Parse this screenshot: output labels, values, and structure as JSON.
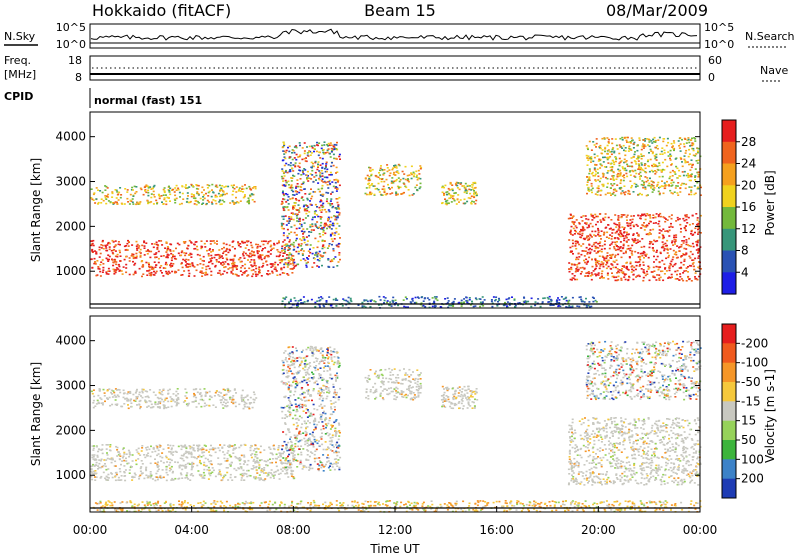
{
  "header": {
    "left_title": "Hokkaido (fitACF)",
    "center_title": "Beam 15",
    "right_title": "08/Mar/2009"
  },
  "summary_panels": {
    "nsky": {
      "label": "N.Sky",
      "right_label": "N.Search",
      "left_ticks": [
        "10^5",
        "10^0"
      ],
      "right_ticks": [
        "10^5",
        "10^0"
      ]
    },
    "freq": {
      "label_line1": "Freq.",
      "label_line2": "[MHz]",
      "left_ticks": [
        "18",
        "8"
      ],
      "right_ticks": [
        "60",
        "0"
      ],
      "right_label": "Nave"
    },
    "cpid": {
      "label": "CPID",
      "value": "normal (fast) 151"
    }
  },
  "chart_data": [
    {
      "type": "heatmap",
      "panel": "power",
      "ylabel": "Slant Range [km]",
      "yticks": [
        1000,
        2000,
        3000,
        4000
      ],
      "ylim": [
        180,
        4550
      ],
      "xlim_hours": [
        0,
        24
      ],
      "colorbar_label": "Power [dB]",
      "colorbar_ticks": [
        4,
        8,
        12,
        16,
        20,
        24,
        28
      ],
      "colorbar_colors": [
        "#1e1ee6",
        "#2a52b4",
        "#37967a",
        "#73b93c",
        "#f0d21e",
        "#f5a01e",
        "#f0641e",
        "#e61e1e"
      ],
      "scatter_regions": [
        {
          "t": [
            0.0,
            8.0
          ],
          "r": [
            900,
            1700
          ],
          "level": "high"
        },
        {
          "t": [
            0.0,
            6.5
          ],
          "r": [
            2500,
            2950
          ],
          "level": "mid"
        },
        {
          "t": [
            7.5,
            9.8
          ],
          "r": [
            1100,
            3900
          ],
          "level": "mixed"
        },
        {
          "t": [
            10.8,
            13.0
          ],
          "r": [
            2700,
            3400
          ],
          "level": "mid"
        },
        {
          "t": [
            13.8,
            15.2
          ],
          "r": [
            2500,
            3000
          ],
          "level": "mid"
        },
        {
          "t": [
            18.8,
            24.0
          ],
          "r": [
            800,
            2300
          ],
          "level": "high"
        },
        {
          "t": [
            19.5,
            24.0
          ],
          "r": [
            2700,
            4000
          ],
          "level": "mid"
        },
        {
          "t": [
            7.5,
            20.0
          ],
          "r": [
            200,
            450
          ],
          "level": "low"
        }
      ]
    },
    {
      "type": "heatmap",
      "panel": "velocity",
      "ylabel": "Slant Range [km]",
      "yticks": [
        1000,
        2000,
        3000,
        4000
      ],
      "ylim": [
        180,
        4550
      ],
      "xlim_hours": [
        0,
        24
      ],
      "xlabel": "Time UT",
      "xticks": [
        "00:00",
        "04:00",
        "08:00",
        "12:00",
        "16:00",
        "20:00",
        "00:00"
      ],
      "colorbar_label": "Velocity [m s-1]",
      "colorbar_ticks": [
        "200",
        "100",
        "50",
        "15",
        "-15",
        "-50",
        "-100",
        "-200"
      ],
      "colorbar_colors": [
        "#1e3cb4",
        "#3c82c8",
        "#3cb43c",
        "#96d25a",
        "#c8c8c0",
        "#f5c83c",
        "#f59628",
        "#f05a1e",
        "#e61e1e"
      ],
      "scatter_regions": [
        {
          "t": [
            0.0,
            8.0
          ],
          "r": [
            900,
            1700
          ],
          "level": "near-zero"
        },
        {
          "t": [
            0.0,
            6.5
          ],
          "r": [
            2500,
            2950
          ],
          "level": "near-zero"
        },
        {
          "t": [
            7.5,
            9.8
          ],
          "r": [
            1100,
            3900
          ],
          "level": "mixed"
        },
        {
          "t": [
            10.8,
            13.0
          ],
          "r": [
            2700,
            3400
          ],
          "level": "near-zero"
        },
        {
          "t": [
            13.8,
            15.2
          ],
          "r": [
            2500,
            3000
          ],
          "level": "near-zero"
        },
        {
          "t": [
            18.8,
            24.0
          ],
          "r": [
            800,
            2300
          ],
          "level": "near-zero"
        },
        {
          "t": [
            19.5,
            24.0
          ],
          "r": [
            2700,
            4000
          ],
          "level": "mixed"
        },
        {
          "t": [
            0.0,
            24.0
          ],
          "r": [
            200,
            450
          ],
          "level": "negative"
        }
      ]
    }
  ]
}
